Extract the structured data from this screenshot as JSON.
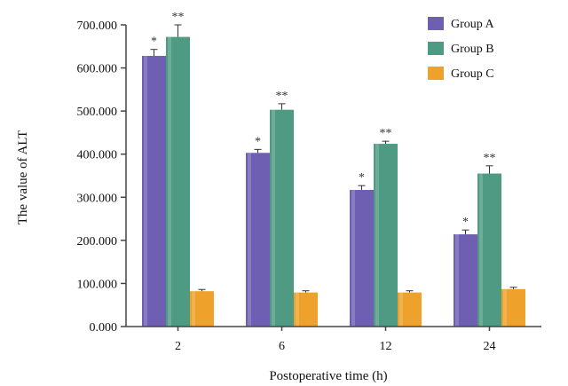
{
  "chart_data": {
    "type": "bar",
    "categories": [
      "2",
      "6",
      "12",
      "24"
    ],
    "xlabel": "Postoperative time (h)",
    "ylabel": "The value of ALT",
    "ylim": [
      0,
      700
    ],
    "yticks": [
      "0.000",
      "100.000",
      "200.000",
      "300.000",
      "400.000",
      "500.000",
      "600.000",
      "700.000"
    ],
    "legend_position": "top-right",
    "grid": false,
    "series": [
      {
        "name": "Group A",
        "color": "#6f5fb3",
        "values": [
          628,
          403,
          317,
          214
        ],
        "errors": [
          15,
          8,
          10,
          10
        ],
        "annotations": [
          "*",
          "*",
          "*",
          "*"
        ]
      },
      {
        "name": "Group B",
        "color": "#4e9a83",
        "values": [
          672,
          503,
          424,
          355
        ],
        "errors": [
          28,
          14,
          6,
          18
        ],
        "annotations": [
          "**",
          "**",
          "**",
          "**"
        ]
      },
      {
        "name": "Group C",
        "color": "#eea22c",
        "values": [
          82,
          79,
          79,
          87
        ],
        "errors": [
          4,
          4,
          4,
          4
        ],
        "annotations": [
          "",
          "",
          "",
          ""
        ]
      }
    ]
  }
}
